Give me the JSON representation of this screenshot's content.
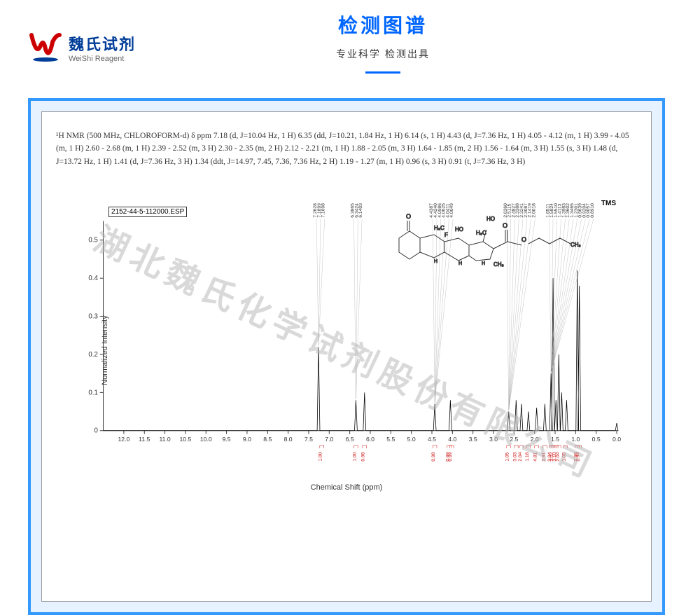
{
  "logo": {
    "cn": "魏氏试剂",
    "en": "WeiShi Reagent"
  },
  "header": {
    "title": "检测图谱",
    "subtitle": "专业科学 检测出具"
  },
  "watermark": "湖北魏氏化学试剂股份有限公司",
  "nmr_description": "¹H NMR (500 MHz, CHLOROFORM-d) δ ppm 7.18 (d, J=10.04 Hz, 1 H) 6.35 (dd, J=10.21, 1.84 Hz, 1 H) 6.14 (s, 1 H) 4.43 (d, J=7.36 Hz, 1 H) 4.05 - 4.12 (m, 1 H) 3.99 - 4.05 (m, 1 H) 2.60 - 2.68 (m, 1 H) 2.39 - 2.52 (m, 3 H) 2.30 - 2.35 (m, 2 H) 2.12 - 2.21 (m, 1 H) 1.88 - 2.05 (m, 3 H) 1.64 - 1.85 (m, 2 H) 1.56 - 1.64 (m, 3 H) 1.55 (s, 3 H) 1.48 (d, J=13.72 Hz, 1 H) 1.41 (d, J=7.36 Hz, 3 H) 1.34 (ddt, J=14.97, 7.45, 7.36, 7.36 Hz, 2 H) 1.19 - 1.27 (m, 1 H) 0.96 (s, 3 H) 0.91 (t, J=7.36 Hz, 3 H)",
  "esp_label": "2152-44-5-112000.ESP",
  "tms": "TMS",
  "axes": {
    "x_label": "Chemical Shift (ppm)",
    "y_label": "Normalized Intensity",
    "x_ticks": [
      12.0,
      11.5,
      11.0,
      10.5,
      10.0,
      9.5,
      9.0,
      8.5,
      8.0,
      7.5,
      7.0,
      6.5,
      6.0,
      5.5,
      5.0,
      4.5,
      4.0,
      3.5,
      3.0,
      2.5,
      2.0,
      1.5,
      1.0,
      0.5,
      0
    ],
    "y_ticks": [
      0,
      0.1,
      0.2,
      0.3,
      0.4,
      0.5
    ],
    "x_min": 0,
    "x_max": 12.5,
    "y_min": 0,
    "y_max": 0.55
  },
  "peaks": [
    {
      "ppm": 7.26,
      "h": 0.22,
      "labels": [
        "7.2628",
        "7.1899",
        "7.1698"
      ]
    },
    {
      "ppm": 6.35,
      "h": 0.08,
      "labels": [
        "6.3865",
        "6.3424",
        "6.1403"
      ]
    },
    {
      "ppm": 6.14,
      "h": 0.1,
      "labels": []
    },
    {
      "ppm": 4.43,
      "h": 0.07,
      "labels": [
        "4.4387",
        "4.4240",
        "4.0986",
        "4.0625",
        "4.0411",
        "4.0049"
      ]
    },
    {
      "ppm": 4.05,
      "h": 0.08,
      "labels": []
    },
    {
      "ppm": 2.63,
      "h": 0.05,
      "labels": [
        "2.6360",
        "2.5115",
        "2.4827",
        "2.3388",
        "2.3241",
        "2.3087",
        "2.1419",
        "2.0018"
      ]
    },
    {
      "ppm": 2.45,
      "h": 0.08,
      "labels": []
    },
    {
      "ppm": 2.32,
      "h": 0.07,
      "labels": []
    },
    {
      "ppm": 2.15,
      "h": 0.05,
      "labels": []
    },
    {
      "ppm": 1.95,
      "h": 0.06,
      "labels": []
    },
    {
      "ppm": 1.75,
      "h": 0.07,
      "labels": []
    },
    {
      "ppm": 1.6,
      "h": 0.15,
      "labels": [
        "1.6511",
        "1.5824",
        "1.5510",
        "1.4113",
        "1.3983",
        "1.3602",
        "1.3465",
        "1.2301",
        "0.9639",
        "0.9204",
        "0.9057",
        "0.8910"
      ]
    },
    {
      "ppm": 1.55,
      "h": 0.4,
      "labels": []
    },
    {
      "ppm": 1.48,
      "h": 0.08,
      "labels": []
    },
    {
      "ppm": 1.41,
      "h": 0.2,
      "labels": []
    },
    {
      "ppm": 1.34,
      "h": 0.1,
      "labels": []
    },
    {
      "ppm": 1.22,
      "h": 0.08,
      "labels": []
    },
    {
      "ppm": 0.96,
      "h": 0.42,
      "labels": []
    },
    {
      "ppm": 0.91,
      "h": 0.38,
      "labels": []
    },
    {
      "ppm": 0.0,
      "h": 0.02,
      "labels": []
    }
  ],
  "integrals": [
    {
      "ppm": 7.18,
      "val": "1.00"
    },
    {
      "ppm": 6.35,
      "val": "1.00"
    },
    {
      "ppm": 6.14,
      "val": "0.98"
    },
    {
      "ppm": 4.43,
      "val": "0.98"
    },
    {
      "ppm": 4.08,
      "val": "0.99"
    },
    {
      "ppm": 4.02,
      "val": "0.99"
    },
    {
      "ppm": 2.63,
      "val": "1.05"
    },
    {
      "ppm": 2.45,
      "val": "3.03"
    },
    {
      "ppm": 2.32,
      "val": "2.04"
    },
    {
      "ppm": 2.15,
      "val": "1.18"
    },
    {
      "ppm": 1.95,
      "val": "4.81"
    },
    {
      "ppm": 1.75,
      "val": "2.91"
    },
    {
      "ppm": 1.6,
      "val": "3.04"
    },
    {
      "ppm": 1.55,
      "val": "3.02"
    },
    {
      "ppm": 1.48,
      "val": "3.10"
    },
    {
      "ppm": 1.41,
      "val": "2.04"
    },
    {
      "ppm": 1.25,
      "val": "1.05"
    },
    {
      "ppm": 0.96,
      "val": "2.98"
    },
    {
      "ppm": 0.91,
      "val": "2.94"
    }
  ],
  "colors": {
    "accent": "#0066ff",
    "border": "#3399ff",
    "bg": "#e6f2ff",
    "axis": "#333333",
    "integral": "#cc0000"
  }
}
